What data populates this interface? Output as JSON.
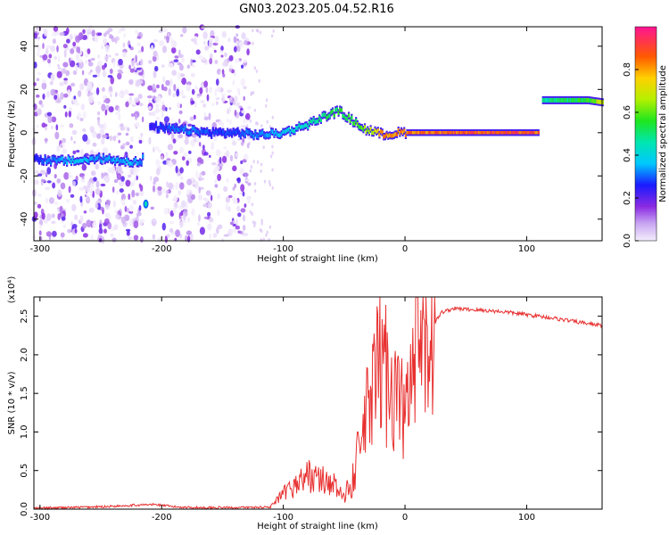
{
  "title": "GN03.2023.205.04.52.R16",
  "chart_data": [
    {
      "type": "heatmap",
      "xlabel": "Height of straight line (km)",
      "ylabel": "Frequency (Hz)",
      "xlim": [
        -305,
        162
      ],
      "ylim": [
        -50,
        49
      ],
      "x_ticks": [
        -300,
        -200,
        -100,
        0,
        100
      ],
      "x_tick_labels": [
        "-300",
        "-200",
        "-100",
        "0",
        "100"
      ],
      "y_ticks": [
        -40,
        -20,
        0,
        20,
        40
      ],
      "y_tick_labels": [
        "-40",
        "-20",
        "0",
        "20",
        "40"
      ],
      "colorbar": {
        "label": "Normalized spectral amplitude",
        "range": [
          0,
          1
        ],
        "ticks": [
          0.0,
          0.2,
          0.4,
          0.6,
          0.8
        ],
        "tick_labels": [
          "0.0",
          "0.2",
          "0.4",
          "0.6",
          "0.8"
        ]
      },
      "ridge_frequency": {
        "x": [
          -305,
          -290,
          -270,
          -250,
          -230,
          -217,
          -210,
          -200,
          -180,
          -160,
          -140,
          -120,
          -100,
          -80,
          -65,
          -55,
          -45,
          -35,
          -25,
          -15,
          -5,
          0,
          50,
          100,
          110,
          112,
          130,
          150,
          162
        ],
        "y": [
          -12,
          -13,
          -13,
          -12,
          -13,
          -14,
          3,
          2,
          1,
          0,
          0,
          -1,
          0,
          4,
          8,
          10,
          6,
          2,
          0,
          -1,
          0,
          0,
          0,
          0,
          0,
          15,
          15,
          15,
          14
        ]
      },
      "ridge_amplitude": [
        0.3,
        0.35,
        0.4,
        0.35,
        0.4,
        0.35,
        0.25,
        0.3,
        0.35,
        0.3,
        0.3,
        0.35,
        0.4,
        0.5,
        0.55,
        0.6,
        0.6,
        0.65,
        0.8,
        0.85,
        0.9,
        0.9,
        0.95,
        0.95,
        0.9,
        0.5,
        0.55,
        0.6,
        0.75
      ]
    },
    {
      "type": "line",
      "xlabel": "Height of straight line (km)",
      "ylabel": "SNR (10 * v/v)",
      "y_scale_label": "(x10⁴)",
      "xlim": [
        -305,
        162
      ],
      "ylim": [
        0,
        2.75
      ],
      "x_ticks": [
        -300,
        -200,
        -100,
        0,
        100
      ],
      "x_tick_labels": [
        "-300",
        "-200",
        "-100",
        "0",
        "100"
      ],
      "y_ticks": [
        0.0,
        0.5,
        1.0,
        1.5,
        2.0,
        2.5
      ],
      "y_tick_labels": [
        "0.0",
        "0.5",
        "1.0",
        "1.5",
        "2.0",
        "2.5"
      ],
      "color": "#e83030",
      "series": [
        {
          "x": [
            -305,
            -280,
            -250,
            -225,
            -205,
            -190,
            -170,
            -150,
            -130,
            -110,
            -100,
            -90,
            -80,
            -70,
            -60,
            -50,
            -40,
            -30,
            -20,
            -10,
            0,
            10,
            20,
            30,
            40,
            60,
            80,
            100,
            120,
            140,
            162
          ],
          "values": [
            0.01,
            0.02,
            0.03,
            0.05,
            0.06,
            0.03,
            0.02,
            0.02,
            0.02,
            0.03,
            0.15,
            0.25,
            0.35,
            0.3,
            0.28,
            0.1,
            0.6,
            1.3,
            1.9,
            1.6,
            1.2,
            1.9,
            2.3,
            2.55,
            2.6,
            2.58,
            2.56,
            2.52,
            2.48,
            2.43,
            2.38
          ]
        }
      ]
    }
  ]
}
